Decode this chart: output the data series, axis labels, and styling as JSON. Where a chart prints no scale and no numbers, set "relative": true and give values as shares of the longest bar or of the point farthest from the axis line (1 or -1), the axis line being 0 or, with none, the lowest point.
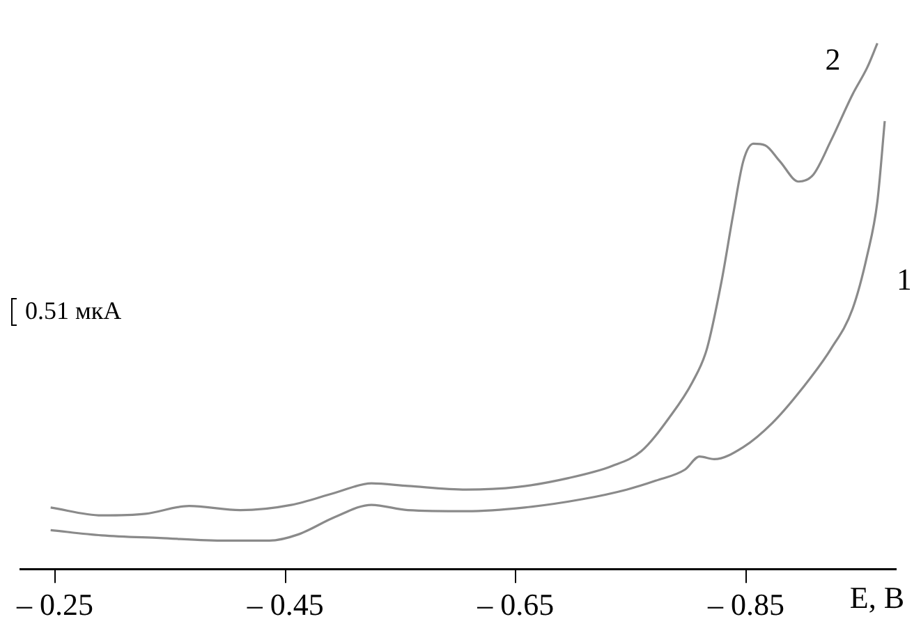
{
  "chart_data": {
    "type": "line",
    "relative": true,
    "xlabel": "E, B",
    "annotations": [
      "0.51 мкА"
    ],
    "xlim": [
      -0.22,
      -0.98
    ],
    "xticks": [
      {
        "value": -0.25,
        "label": "– 0.25"
      },
      {
        "value": -0.45,
        "label": "– 0.45"
      },
      {
        "value": -0.65,
        "label": "– 0.65"
      },
      {
        "value": -0.85,
        "label": "– 0.85"
      }
    ],
    "grid": false,
    "legend": false,
    "marker": "none",
    "line_style": "solid",
    "series": [
      {
        "name": "1",
        "color": "#8a8a8a",
        "x": [
          -0.2462,
          -0.2905,
          -0.3411,
          -0.3981,
          -0.4361,
          -0.4614,
          -0.493,
          -0.5247,
          -0.5563,
          -0.607,
          -0.6576,
          -0.7082,
          -0.7462,
          -0.7715,
          -0.7968,
          -0.8095,
          -0.8222,
          -0.8475,
          -0.8728,
          -0.8981,
          -0.9234,
          -0.9424,
          -0.9551,
          -0.9639,
          -0.9703
        ],
        "values": [
          0.074,
          0.064,
          0.059,
          0.054,
          0.054,
          0.066,
          0.099,
          0.122,
          0.112,
          0.11,
          0.117,
          0.133,
          0.151,
          0.168,
          0.189,
          0.214,
          0.209,
          0.232,
          0.278,
          0.342,
          0.418,
          0.495,
          0.597,
          0.699,
          0.852
        ]
      },
      {
        "name": "2",
        "color": "#8a8a8a",
        "x": [
          -0.2462,
          -0.2905,
          -0.3285,
          -0.3665,
          -0.4108,
          -0.4551,
          -0.493,
          -0.5247,
          -0.5563,
          -0.607,
          -0.6513,
          -0.6956,
          -0.7335,
          -0.7589,
          -0.7842,
          -0.8032,
          -0.8158,
          -0.8285,
          -0.8386,
          -0.8475,
          -0.8563,
          -0.8665,
          -0.8791,
          -0.8956,
          -0.9082,
          -0.9234,
          -0.9424,
          -0.9551,
          -0.9639
        ],
        "values": [
          0.117,
          0.102,
          0.105,
          0.12,
          0.112,
          0.122,
          0.145,
          0.163,
          0.158,
          0.151,
          0.156,
          0.173,
          0.196,
          0.224,
          0.291,
          0.355,
          0.418,
          0.546,
          0.673,
          0.776,
          0.809,
          0.806,
          0.776,
          0.737,
          0.75,
          0.814,
          0.903,
          0.954,
          1
        ]
      }
    ]
  }
}
